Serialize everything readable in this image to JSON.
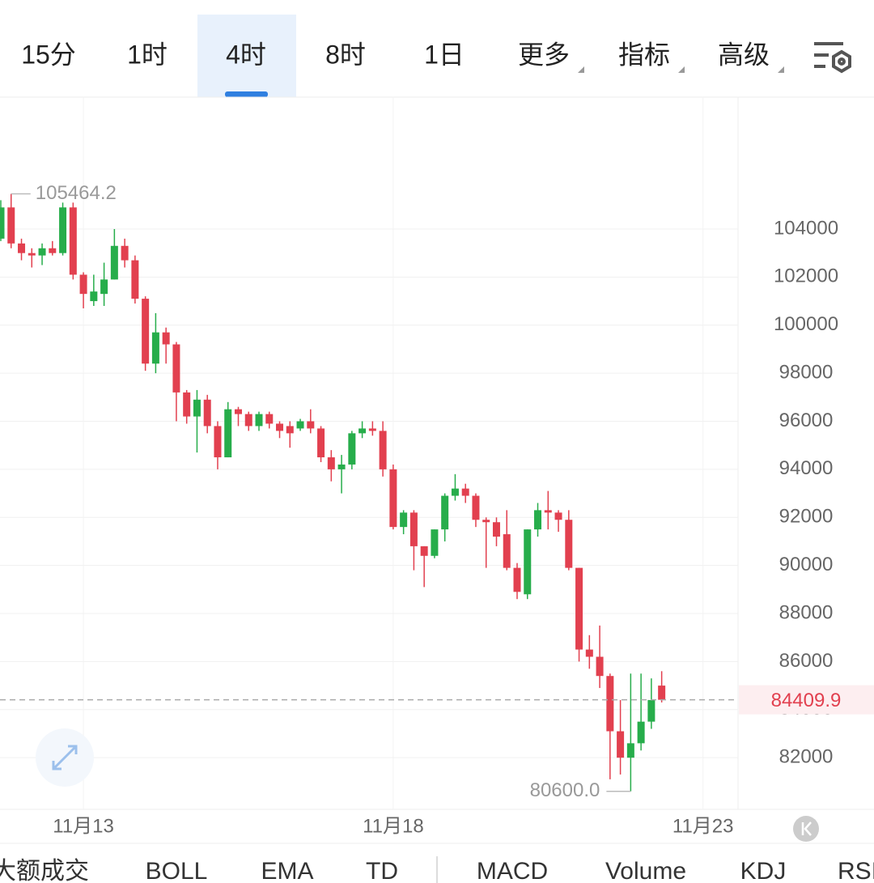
{
  "tabs": [
    "15分",
    "1时",
    "4时",
    "8时",
    "1日",
    "更多",
    "指标",
    "高级"
  ],
  "active_tab": 2,
  "chart_data": {
    "type": "candlestick",
    "categories": [
      null,
      null,
      null,
      null,
      null,
      null,
      null,
      null,
      "11月13",
      null,
      null,
      null,
      null,
      null,
      null,
      null,
      null,
      null,
      null,
      null,
      null,
      null,
      null,
      null,
      null,
      null,
      null,
      null,
      null,
      null,
      null,
      null,
      null,
      null,
      null,
      null,
      null,
      null,
      "11月18",
      null,
      null,
      null,
      null,
      null,
      null,
      null,
      null,
      null,
      null,
      null,
      null,
      null,
      null,
      null,
      null,
      null,
      null,
      null,
      null,
      null,
      null,
      null,
      null,
      null,
      null,
      null,
      null,
      null,
      "11月23"
    ],
    "open": [
      103600,
      104900,
      103400,
      103000,
      102900,
      103200,
      103000,
      104900,
      102100,
      101000,
      101300,
      101900,
      103300,
      102700,
      101100,
      98400,
      99700,
      99200,
      97200,
      96200,
      96900,
      95800,
      94500,
      96500,
      96300,
      95800,
      96300,
      95900,
      95800,
      95700,
      96000,
      95700,
      94500,
      94000,
      94200,
      95500,
      95700,
      95600,
      94000,
      91600,
      92200,
      90800,
      90400,
      91500,
      92900,
      93200,
      92900,
      91900,
      91800,
      91300,
      89900,
      88800,
      91500,
      92300,
      92200,
      91900,
      89900,
      86500,
      86200,
      85400,
      83100,
      82000,
      82600,
      83500,
      85000,
      null,
      null,
      null,
      null
    ],
    "high": [
      105200,
      105464.2,
      103600,
      103200,
      103400,
      103500,
      105100,
      105100,
      102200,
      102100,
      102600,
      104000,
      103600,
      102900,
      101200,
      100500,
      99900,
      99300,
      97300,
      97300,
      97100,
      96000,
      96800,
      96600,
      96400,
      96400,
      96400,
      96000,
      96000,
      96100,
      96500,
      95800,
      94800,
      94600,
      95600,
      96000,
      96000,
      96000,
      94200,
      92300,
      92300,
      90800,
      91500,
      93000,
      93800,
      93400,
      93000,
      92000,
      92000,
      92300,
      90100,
      91500,
      92600,
      93100,
      92300,
      92300,
      89900,
      87100,
      87500,
      85500,
      84400,
      85500,
      85500,
      85300,
      85600,
      null,
      null,
      null,
      null
    ],
    "low": [
      103500,
      103200,
      102700,
      102400,
      102500,
      102900,
      102900,
      101900,
      100700,
      100800,
      100800,
      101900,
      102400,
      100900,
      98100,
      98000,
      98400,
      96000,
      95900,
      94700,
      95500,
      94000,
      94500,
      95800,
      95600,
      95600,
      95700,
      95300,
      94900,
      95600,
      95500,
      94300,
      93500,
      93000,
      94000,
      95300,
      95400,
      93700,
      91500,
      91300,
      89800,
      89100,
      90300,
      91000,
      92700,
      92600,
      91600,
      89900,
      90800,
      89800,
      88600,
      88600,
      91200,
      91500,
      91400,
      89800,
      86000,
      85700,
      84900,
      81100,
      81300,
      80600,
      82300,
      83200,
      84300,
      null,
      null,
      null,
      null
    ],
    "close": [
      104900,
      103400,
      103000,
      102900,
      103200,
      103000,
      104900,
      102100,
      101300,
      101400,
      101900,
      103300,
      102700,
      101100,
      98400,
      99700,
      99200,
      97200,
      96200,
      96900,
      95800,
      94500,
      96500,
      96300,
      95800,
      96300,
      95900,
      95600,
      95500,
      96000,
      95700,
      94500,
      94000,
      94200,
      95500,
      95700,
      95600,
      94000,
      91600,
      92200,
      90800,
      90400,
      91500,
      92900,
      93200,
      92900,
      91900,
      91800,
      91200,
      89900,
      88900,
      91500,
      92300,
      92200,
      91900,
      89900,
      86500,
      86200,
      85400,
      83100,
      82000,
      82600,
      83500,
      84400,
      84409.9,
      null,
      null,
      null,
      null
    ],
    "up_color": "#27ad4b",
    "down_color": "#e2404f",
    "ylim": [
      79850,
      109490
    ],
    "yticks": [
      82000,
      84000,
      86000,
      88000,
      90000,
      92000,
      94000,
      96000,
      98000,
      100000,
      102000,
      104000
    ],
    "grid": true,
    "last_price": 84409.9,
    "min_label": "80600.0"
  },
  "indicators": [
    "大额成交",
    "BOLL",
    "EMA",
    "TD",
    "MACD",
    "Volume",
    "KDJ",
    "RSI"
  ]
}
